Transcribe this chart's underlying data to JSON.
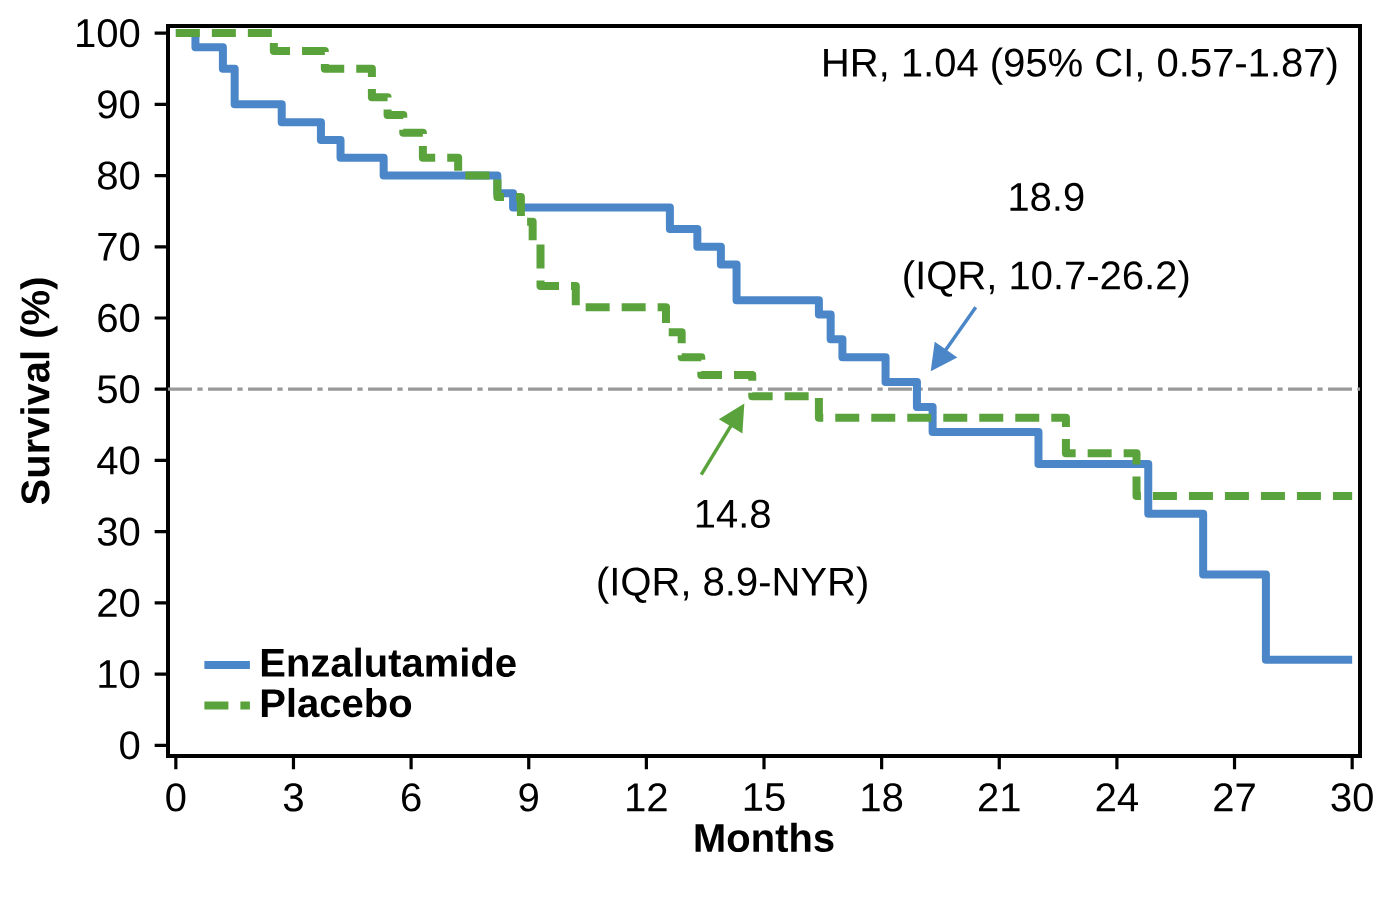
{
  "chart_data": {
    "type": "step",
    "xlabel": "Months",
    "ylabel": "Survival (%)",
    "xlim": [
      -0.2,
      30.2
    ],
    "ylim": [
      -1.5,
      101
    ],
    "xticks": [
      0,
      3,
      6,
      9,
      12,
      15,
      18,
      21,
      24,
      27,
      30
    ],
    "yticks": [
      0,
      10,
      20,
      30,
      40,
      50,
      60,
      70,
      80,
      90,
      100
    ],
    "legend": "bottom left",
    "grid": false,
    "series": [
      {
        "name": "Enzalutamide",
        "color": "#4a86c8",
        "line_style": "solid",
        "x": [
          0,
          0.5,
          1.2,
          1.5,
          2.7,
          3.7,
          4.2,
          5.3,
          8.2,
          8.6,
          12.6,
          13.3,
          13.9,
          14.3,
          16.4,
          16.7,
          17.0,
          18.1,
          18.9,
          19.3,
          22.0,
          24.8,
          26.2,
          27.8,
          30
        ],
        "values": [
          100,
          98,
          95,
          90,
          87.5,
          85,
          82.5,
          80,
          77.5,
          75.5,
          72.5,
          70,
          67.5,
          62.5,
          60.5,
          57,
          54.5,
          51,
          47.5,
          44,
          39.5,
          32.5,
          24,
          12,
          12
        ]
      },
      {
        "name": "Placebo",
        "color": "#5aa33c",
        "line_style": "dashed",
        "x": [
          0,
          2.5,
          3.8,
          5.0,
          5.4,
          5.8,
          6.3,
          7.2,
          8.2,
          8.8,
          9.1,
          9.3,
          10.2,
          12.5,
          12.9,
          13.4,
          14.7,
          16.4,
          22.7,
          24.5,
          30
        ],
        "values": [
          100,
          97.5,
          95,
          91,
          88.5,
          86,
          82.5,
          80,
          77,
          73.5,
          70.5,
          64.5,
          61.5,
          58,
          54.5,
          52,
          49,
          46,
          41,
          35,
          35
        ]
      }
    ],
    "ref_lines": [
      {
        "axis": "y",
        "value": 50,
        "color": "#999999",
        "line_style": "dashdot"
      }
    ],
    "annotations": [
      "HR, 1.04 (95% CI, 0.57-1.87)",
      "18.9",
      {
        "text": "(IQR, 10.7-26.2)",
        "x": 18.9,
        "y": 50
      },
      {
        "text": "14.8",
        "x": 14.8,
        "y": 50
      },
      "(IQR, 8.9-NYR)"
    ]
  }
}
